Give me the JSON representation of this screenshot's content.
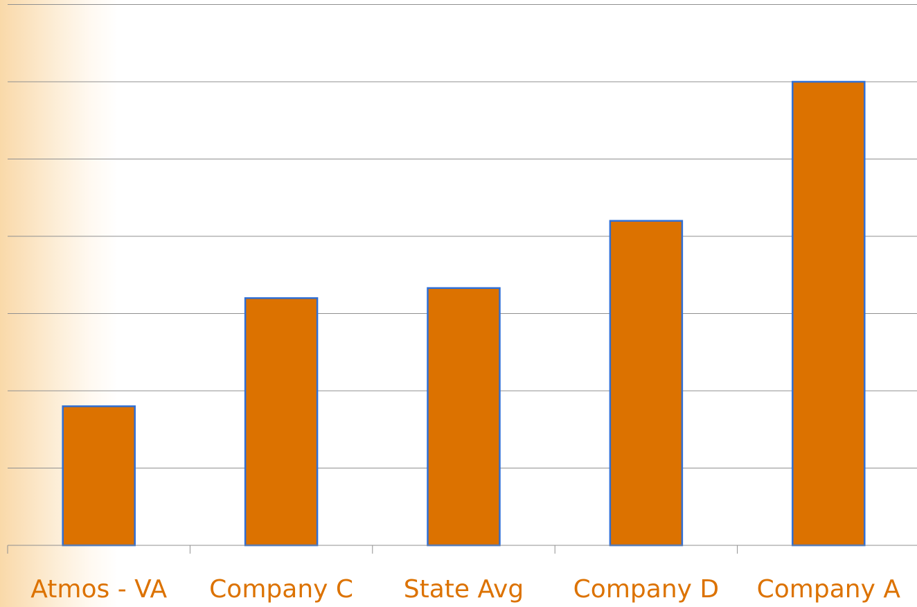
{
  "colors": {
    "bar_fill": "#dc7200",
    "bar_stroke": "#2f6fd6",
    "label": "#dc7200",
    "gridline": "#8f8f8f"
  },
  "chart_data": {
    "type": "bar",
    "categories": [
      "Atmos - VA",
      "Company C",
      "State Avg",
      "Company D",
      "Company A"
    ],
    "values": [
      1.8,
      3.2,
      3.33,
      4.2,
      6.0
    ],
    "ylim": [
      0,
      7
    ],
    "grid": true,
    "legend": "none"
  }
}
